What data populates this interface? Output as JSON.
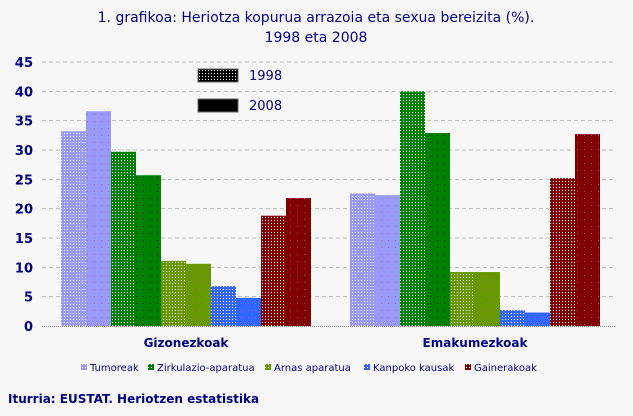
{
  "chart_data": {
    "type": "bar",
    "title": "1. grafikoa: Heriotza kopurua arrazoia eta sexua bereizita (%).",
    "subtitle": "1998 eta 2008",
    "categories": [
      "Gizonezkoak",
      "Emakumezkoak"
    ],
    "years": [
      "1998",
      "2008"
    ],
    "causes": [
      {
        "name": "Tumoreak",
        "color": "#9999f8",
        "values": {
          "Gizonezkoak": [
            33.2,
            36.6
          ],
          "Emakumezkoak": [
            22.6,
            22.3
          ]
        }
      },
      {
        "name": "Zirkulazio-aparatua",
        "color": "#008000",
        "values": {
          "Gizonezkoak": [
            29.7,
            25.7
          ],
          "Emakumezkoak": [
            40.0,
            32.9
          ]
        }
      },
      {
        "name": "Arnas aparatua",
        "color": "#669900",
        "values": {
          "Gizonezkoak": [
            11.1,
            10.6
          ],
          "Emakumezkoak": [
            9.2,
            9.2
          ]
        }
      },
      {
        "name": "Kanpoko kausak",
        "color": "#3366ff",
        "values": {
          "Gizonezkoak": [
            6.8,
            4.8
          ],
          "Emakumezkoak": [
            2.7,
            2.3
          ]
        }
      },
      {
        "name": "Gainerakoak",
        "color": "#800000",
        "values": {
          "Gizonezkoak": [
            18.8,
            21.8
          ],
          "Emakumezkoak": [
            25.2,
            32.7
          ]
        }
      }
    ],
    "ylim": [
      0,
      45
    ],
    "yticks": [
      "0",
      "5",
      "10",
      "15",
      "20",
      "25",
      "30",
      "35",
      "40",
      "45"
    ],
    "grid": true,
    "legend_position": "bottom",
    "year_legend_position": "top-center"
  },
  "source": "Iturria: EUSTAT. Heriotzen estatistika"
}
